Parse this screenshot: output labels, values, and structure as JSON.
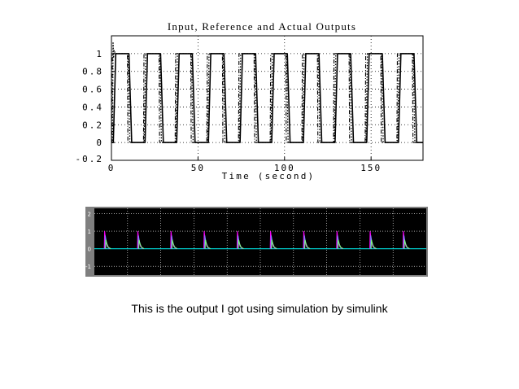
{
  "caption": "This is the output I got using simulation by simulink",
  "colors": {
    "plot1_axes": "#000000",
    "scope_background": "#000000",
    "scope_frame": "#7f7f7f",
    "scope_grid": "#ffffff",
    "scope_trace_primary": "#00c8c8",
    "scope_trace_spike_1": "#ff00ff",
    "scope_trace_spike_2": "#8080ff",
    "scope_trace_spike_3": "#80ff80"
  },
  "chart_data": [
    {
      "type": "line",
      "title": "Input, Reference and Actual Outputs",
      "xlabel": "Time (second)",
      "ylabel": "",
      "xlim": [
        0,
        180
      ],
      "ylim": [
        -0.2,
        1.2
      ],
      "x_ticks": [
        0,
        50,
        100,
        150
      ],
      "x_tick_labels": [
        "0",
        "50",
        "100",
        "150"
      ],
      "y_ticks": [
        -0.2,
        0,
        0.2,
        0.4,
        0.6,
        0.8,
        1
      ],
      "y_tick_labels": [
        "-0.2",
        "0",
        "0.2",
        "0.4",
        "0.6",
        "0.8",
        "1"
      ],
      "grid": true,
      "square_wave": {
        "period": 18.3,
        "high_duration": 9.2,
        "low": 0,
        "high": 1,
        "rise_time": 1.5,
        "fall_time": 1.5,
        "cycles": 10
      },
      "initial_overshoot_peak": 1.12,
      "series": [
        {
          "style": "solid"
        },
        {
          "style": "dash-dot"
        },
        {
          "style": "dotted"
        }
      ]
    },
    {
      "type": "line",
      "title": "",
      "xlabel": "",
      "ylabel": "",
      "xlim": [
        0,
        10
      ],
      "ylim": [
        -1.5,
        2.3
      ],
      "y_ticks": [
        -1,
        0,
        1,
        2
      ],
      "y_tick_labels": [
        "-1",
        "0",
        "1",
        "2"
      ],
      "grid": true,
      "pulse_times": [
        0.3,
        1.3,
        2.3,
        3.3,
        4.3,
        5.3,
        6.3,
        7.3,
        8.3,
        9.3
      ],
      "baseline": 0,
      "spike_peaks": [
        1.0,
        0.75,
        0.5
      ]
    }
  ]
}
